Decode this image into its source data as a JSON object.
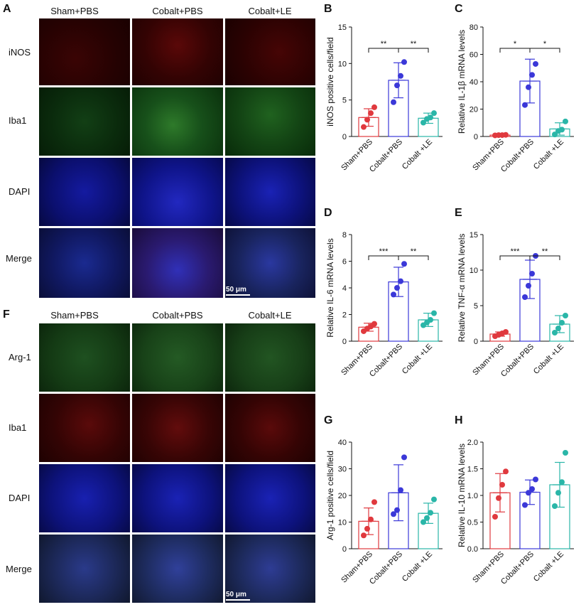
{
  "figure": {
    "panels": {
      "A": "A",
      "B": "B",
      "C": "C",
      "D": "D",
      "E": "E",
      "F": "F",
      "G": "G",
      "H": "H"
    },
    "groups": [
      "Sham+PBS",
      "Cobalt+PBS",
      "Cobalt+LE"
    ],
    "row_labels_top": [
      "iNOS",
      "Iba1",
      "DAPI",
      "Merge"
    ],
    "row_labels_bottom": [
      "Arg-1",
      "Iba1",
      "DAPI",
      "Merge"
    ],
    "scale_bar": "50 μm",
    "colors": {
      "sham": "#e0393e",
      "cobalt_pbs": "#3b38d8",
      "cobalt_le": "#2ab6a8",
      "inos_channel": "#3a0606",
      "iba1_green": "#0c3a12",
      "dapi": "#0a0f6a",
      "arg1_green": "#1a4418",
      "iba1_red": "#3a0808"
    }
  },
  "chart_data": [
    {
      "panel": "B",
      "type": "bar",
      "categories": [
        "Sham+PBS",
        "Cobalt+PBS",
        "Cobalt +LE"
      ],
      "ylabel": "iNOS positive cells/field",
      "ylim": [
        0,
        15
      ],
      "yticks": [
        0,
        5,
        10,
        15
      ],
      "means": [
        2.6,
        7.7,
        2.5
      ],
      "sd": [
        1.2,
        2.4,
        0.7
      ],
      "points": [
        [
          1.3,
          2.3,
          3.2,
          4.0
        ],
        [
          4.7,
          7.0,
          8.3,
          10.2
        ],
        [
          1.9,
          2.4,
          2.6,
          3.2
        ]
      ],
      "significance": [
        {
          "from": 0,
          "to": 1,
          "label": "**"
        },
        {
          "from": 1,
          "to": 2,
          "label": "**"
        }
      ]
    },
    {
      "panel": "C",
      "type": "bar",
      "categories": [
        "Sham+PBS",
        "Cobalt+PBS",
        "Cobalt +LE"
      ],
      "ylabel": "Relative IL-1β mRNA levels",
      "ylim": [
        0,
        80
      ],
      "yticks": [
        0,
        20,
        40,
        60,
        80
      ],
      "means": [
        1.0,
        40.5,
        5.5
      ],
      "sd": [
        0.3,
        16,
        4.5
      ],
      "points": [
        [
          0.8,
          1.0,
          1.0,
          1.2
        ],
        [
          23,
          36,
          45,
          53
        ],
        [
          1.5,
          4.0,
          5.0,
          11
        ]
      ],
      "significance": [
        {
          "from": 0,
          "to": 1,
          "label": "*"
        },
        {
          "from": 1,
          "to": 2,
          "label": "*"
        }
      ]
    },
    {
      "panel": "D",
      "type": "bar",
      "categories": [
        "Sham+PBS",
        "Cobalt+PBS",
        "Cobalt +LE"
      ],
      "ylabel": "Relative IL-6 mRNA levels",
      "ylim": [
        0,
        8
      ],
      "yticks": [
        0,
        2,
        4,
        6,
        8
      ],
      "means": [
        1.05,
        4.45,
        1.6
      ],
      "sd": [
        0.3,
        1.1,
        0.5
      ],
      "points": [
        [
          0.75,
          0.95,
          1.1,
          1.3
        ],
        [
          3.5,
          4.0,
          4.5,
          5.8
        ],
        [
          1.2,
          1.4,
          1.6,
          2.1
        ]
      ],
      "significance": [
        {
          "from": 0,
          "to": 1,
          "label": "***"
        },
        {
          "from": 1,
          "to": 2,
          "label": "**"
        }
      ]
    },
    {
      "panel": "E",
      "type": "bar",
      "categories": [
        "Sham+PBS",
        "Cobalt+PBS",
        "Cobalt +LE"
      ],
      "ylabel": "Relative TNF-α mRNA levels",
      "ylim": [
        0,
        15
      ],
      "yticks": [
        0,
        5,
        10,
        15
      ],
      "means": [
        1.0,
        8.7,
        2.4
      ],
      "sd": [
        0.3,
        2.7,
        1.2
      ],
      "points": [
        [
          0.7,
          0.9,
          1.1,
          1.3
        ],
        [
          6.2,
          7.8,
          9.5,
          12.0
        ],
        [
          1.2,
          1.8,
          2.6,
          3.6
        ]
      ],
      "significance": [
        {
          "from": 0,
          "to": 1,
          "label": "***"
        },
        {
          "from": 1,
          "to": 2,
          "label": "**"
        }
      ]
    },
    {
      "panel": "G",
      "type": "bar",
      "categories": [
        "Sham+PBS",
        "Cobalt+PBS",
        "Cobalt +LE"
      ],
      "ylabel": "Arg-1 positive cells/field",
      "ylim": [
        0,
        40
      ],
      "yticks": [
        0,
        10,
        20,
        30,
        40
      ],
      "means": [
        10.3,
        21.0,
        13.3
      ],
      "sd": [
        5.0,
        10.5,
        3.8
      ],
      "points": [
        [
          5.0,
          7.5,
          11.0,
          17.5
        ],
        [
          13.0,
          14.5,
          22.0,
          34.3
        ],
        [
          10.0,
          11.5,
          13.5,
          18.5
        ]
      ],
      "significance": []
    },
    {
      "panel": "H",
      "type": "bar",
      "categories": [
        "Sham+PBS",
        "Cobalt+PBS",
        "Cobalt +LE"
      ],
      "ylabel": "Relative IL-10 mRNA levels",
      "ylim": [
        0,
        2.0
      ],
      "yticks": [
        "0.0",
        "0.5",
        "1.0",
        "1.5",
        "2.0"
      ],
      "means": [
        1.05,
        1.06,
        1.2
      ],
      "sd": [
        0.36,
        0.23,
        0.42
      ],
      "points": [
        [
          0.6,
          0.95,
          1.2,
          1.45
        ],
        [
          0.82,
          1.05,
          1.12,
          1.3
        ],
        [
          0.8,
          1.05,
          1.25,
          1.8
        ]
      ],
      "significance": []
    }
  ]
}
